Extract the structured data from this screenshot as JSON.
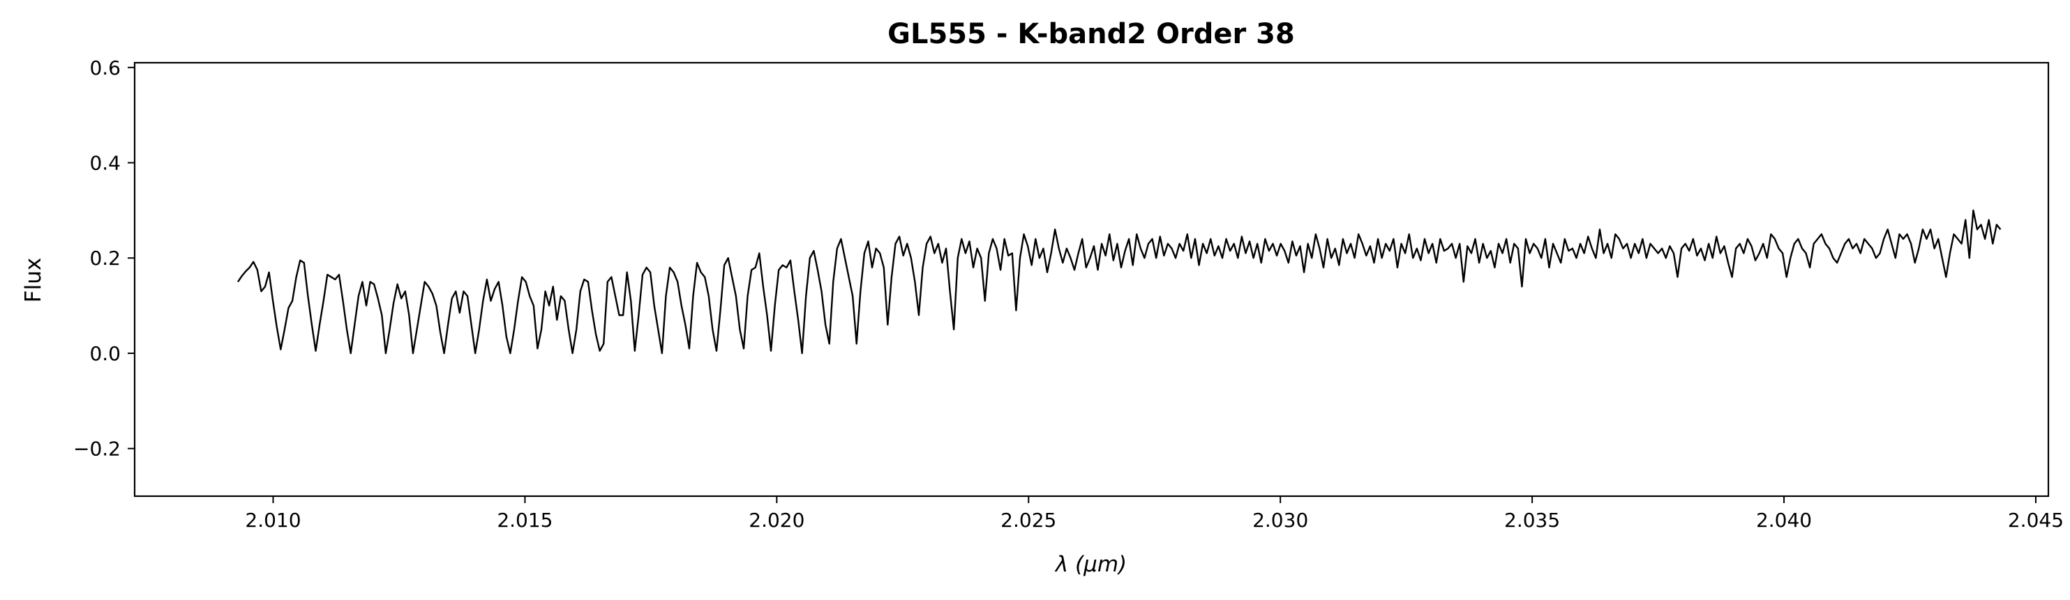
{
  "chart_data": {
    "type": "line",
    "title": "GL555 - K-band2 Order 38",
    "xlabel": "λ (μm)",
    "ylabel": "Flux",
    "xlim": [
      2.00725,
      2.04525
    ],
    "ylim": [
      -0.3,
      0.61
    ],
    "xticks": [
      2.01,
      2.015,
      2.02,
      2.025,
      2.03,
      2.035,
      2.04,
      2.045
    ],
    "xtick_labels": [
      "2.010",
      "2.015",
      "2.020",
      "2.025",
      "2.030",
      "2.035",
      "2.040",
      "2.045"
    ],
    "yticks": [
      -0.2,
      0.0,
      0.2,
      0.4,
      0.6
    ],
    "ytick_labels": [
      "−0.2",
      "0.0",
      "0.2",
      "0.4",
      "0.6"
    ],
    "grid": false,
    "line_color": "#000000",
    "series": [
      {
        "x_start": 2.0093,
        "x_end": 2.0443,
        "values": [
          0.15,
          0.162,
          0.172,
          0.18,
          0.192,
          0.175,
          0.13,
          0.14,
          0.17,
          0.11,
          0.055,
          0.008,
          0.05,
          0.095,
          0.11,
          0.16,
          0.195,
          0.19,
          0.12,
          0.06,
          0.005,
          0.06,
          0.11,
          0.165,
          0.16,
          0.155,
          0.165,
          0.11,
          0.05,
          0.0,
          0.06,
          0.12,
          0.15,
          0.1,
          0.15,
          0.145,
          0.115,
          0.08,
          0.0,
          0.05,
          0.105,
          0.145,
          0.115,
          0.13,
          0.08,
          0.0,
          0.05,
          0.1,
          0.15,
          0.14,
          0.125,
          0.1,
          0.045,
          0.0,
          0.06,
          0.115,
          0.13,
          0.085,
          0.13,
          0.12,
          0.06,
          0.0,
          0.05,
          0.11,
          0.155,
          0.11,
          0.135,
          0.15,
          0.1,
          0.035,
          0.0,
          0.05,
          0.11,
          0.16,
          0.15,
          0.12,
          0.1,
          0.01,
          0.05,
          0.13,
          0.1,
          0.14,
          0.07,
          0.12,
          0.11,
          0.05,
          0.0,
          0.05,
          0.13,
          0.155,
          0.15,
          0.09,
          0.04,
          0.005,
          0.02,
          0.15,
          0.16,
          0.12,
          0.08,
          0.08,
          0.17,
          0.11,
          0.005,
          0.08,
          0.165,
          0.18,
          0.17,
          0.1,
          0.05,
          0.0,
          0.12,
          0.18,
          0.17,
          0.15,
          0.1,
          0.06,
          0.01,
          0.12,
          0.19,
          0.17,
          0.16,
          0.12,
          0.05,
          0.005,
          0.09,
          0.185,
          0.2,
          0.16,
          0.12,
          0.05,
          0.01,
          0.12,
          0.175,
          0.18,
          0.21,
          0.14,
          0.08,
          0.005,
          0.1,
          0.175,
          0.185,
          0.18,
          0.195,
          0.13,
          0.07,
          0.0,
          0.12,
          0.2,
          0.215,
          0.175,
          0.13,
          0.06,
          0.02,
          0.15,
          0.22,
          0.24,
          0.2,
          0.16,
          0.12,
          0.02,
          0.13,
          0.21,
          0.235,
          0.18,
          0.22,
          0.21,
          0.18,
          0.06,
          0.16,
          0.23,
          0.245,
          0.205,
          0.23,
          0.2,
          0.15,
          0.08,
          0.18,
          0.23,
          0.245,
          0.21,
          0.23,
          0.19,
          0.22,
          0.13,
          0.05,
          0.2,
          0.24,
          0.21,
          0.235,
          0.18,
          0.22,
          0.2,
          0.11,
          0.21,
          0.24,
          0.22,
          0.175,
          0.24,
          0.205,
          0.21,
          0.09,
          0.2,
          0.25,
          0.225,
          0.185,
          0.24,
          0.2,
          0.22,
          0.17,
          0.21,
          0.26,
          0.22,
          0.19,
          0.22,
          0.2,
          0.175,
          0.21,
          0.24,
          0.18,
          0.2,
          0.225,
          0.175,
          0.23,
          0.205,
          0.25,
          0.195,
          0.23,
          0.18,
          0.215,
          0.24,
          0.185,
          0.25,
          0.22,
          0.2,
          0.23,
          0.24,
          0.2,
          0.245,
          0.205,
          0.23,
          0.22,
          0.2,
          0.23,
          0.215,
          0.25,
          0.2,
          0.24,
          0.185,
          0.23,
          0.21,
          0.24,
          0.205,
          0.225,
          0.2,
          0.24,
          0.215,
          0.23,
          0.2,
          0.245,
          0.21,
          0.235,
          0.2,
          0.23,
          0.19,
          0.24,
          0.215,
          0.23,
          0.205,
          0.23,
          0.215,
          0.19,
          0.235,
          0.205,
          0.225,
          0.17,
          0.23,
          0.2,
          0.25,
          0.22,
          0.18,
          0.24,
          0.2,
          0.22,
          0.185,
          0.24,
          0.21,
          0.23,
          0.2,
          0.25,
          0.23,
          0.205,
          0.225,
          0.19,
          0.24,
          0.2,
          0.23,
          0.215,
          0.24,
          0.18,
          0.23,
          0.21,
          0.25,
          0.2,
          0.22,
          0.195,
          0.24,
          0.21,
          0.23,
          0.19,
          0.24,
          0.215,
          0.22,
          0.23,
          0.2,
          0.23,
          0.15,
          0.225,
          0.21,
          0.24,
          0.19,
          0.23,
          0.2,
          0.215,
          0.18,
          0.23,
          0.21,
          0.24,
          0.19,
          0.23,
          0.22,
          0.14,
          0.24,
          0.21,
          0.23,
          0.22,
          0.2,
          0.24,
          0.18,
          0.23,
          0.21,
          0.19,
          0.24,
          0.215,
          0.22,
          0.2,
          0.23,
          0.21,
          0.245,
          0.22,
          0.2,
          0.26,
          0.21,
          0.23,
          0.2,
          0.25,
          0.24,
          0.22,
          0.23,
          0.2,
          0.23,
          0.21,
          0.24,
          0.2,
          0.23,
          0.22,
          0.21,
          0.22,
          0.2,
          0.225,
          0.21,
          0.16,
          0.22,
          0.23,
          0.215,
          0.24,
          0.205,
          0.22,
          0.195,
          0.23,
          0.2,
          0.245,
          0.21,
          0.225,
          0.19,
          0.16,
          0.22,
          0.23,
          0.21,
          0.24,
          0.225,
          0.195,
          0.21,
          0.23,
          0.2,
          0.25,
          0.24,
          0.22,
          0.21,
          0.16,
          0.2,
          0.23,
          0.24,
          0.22,
          0.21,
          0.18,
          0.23,
          0.24,
          0.25,
          0.23,
          0.22,
          0.2,
          0.19,
          0.21,
          0.23,
          0.24,
          0.22,
          0.23,
          0.21,
          0.24,
          0.23,
          0.22,
          0.2,
          0.21,
          0.24,
          0.26,
          0.23,
          0.2,
          0.25,
          0.24,
          0.25,
          0.23,
          0.19,
          0.22,
          0.26,
          0.24,
          0.26,
          0.22,
          0.24,
          0.2,
          0.16,
          0.21,
          0.25,
          0.24,
          0.23,
          0.28,
          0.2,
          0.3,
          0.26,
          0.27,
          0.24,
          0.28,
          0.23,
          0.27,
          0.26
        ]
      }
    ]
  }
}
